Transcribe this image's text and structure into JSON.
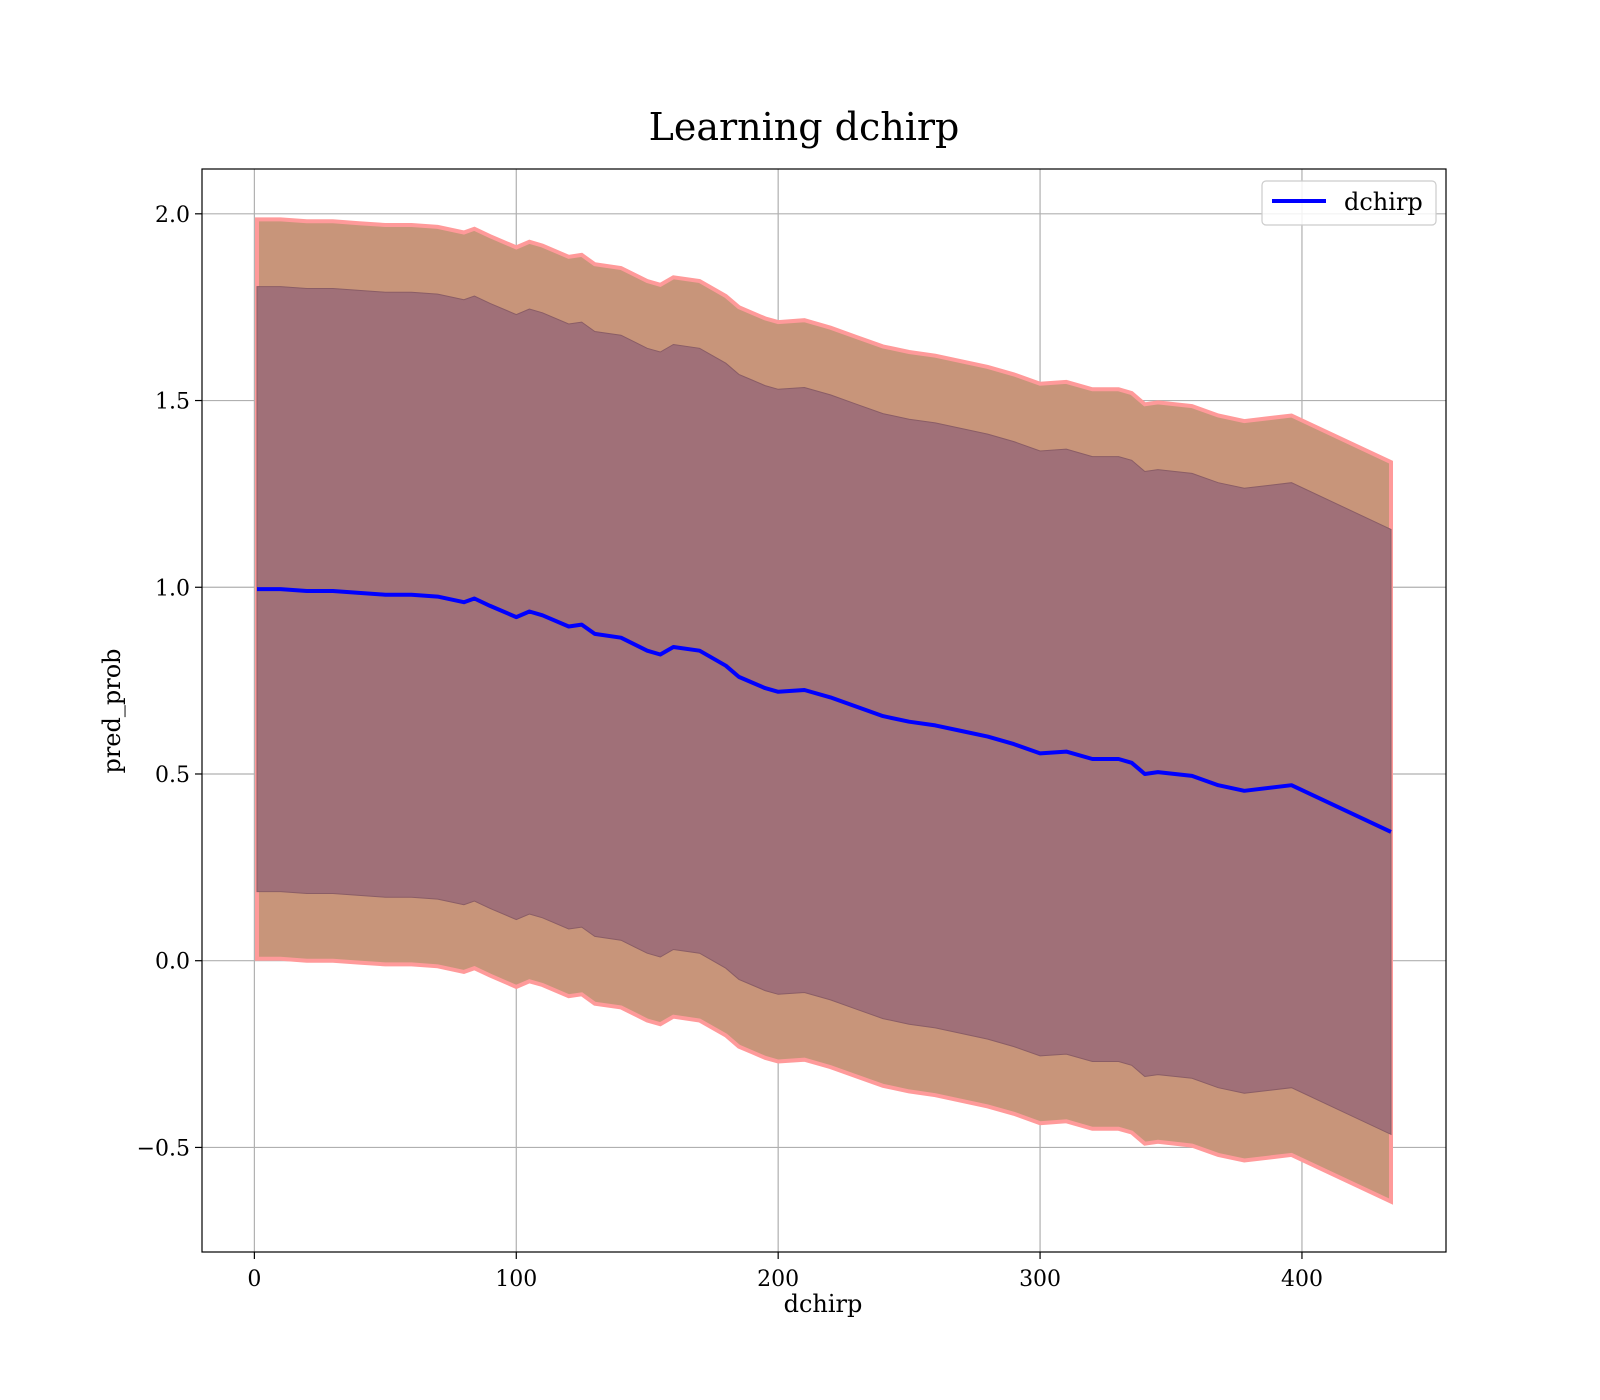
{
  "chart_data": {
    "type": "area",
    "title": "Learning dchirp",
    "xlabel": "dchirp",
    "ylabel": "pred_prob",
    "xlim": [
      -20,
      455
    ],
    "ylim": [
      -0.78,
      2.12
    ],
    "xticks": [
      0,
      100,
      200,
      300,
      400
    ],
    "yticks": [
      -0.5,
      0.0,
      0.5,
      1.0,
      1.5,
      2.0
    ],
    "xtick_labels": [
      "0",
      "100",
      "200",
      "300",
      "400"
    ],
    "ytick_labels": [
      "−0.5",
      "0.0",
      "0.5",
      "1.0",
      "1.5",
      "2.0"
    ],
    "grid": true,
    "legend": {
      "position": "upper-right",
      "entries": [
        "dchirp"
      ]
    },
    "colors": {
      "line": "#0000ff",
      "inner_band": "#a07078",
      "outer_band": "#c8957a",
      "band_edge": "#ff9a9a"
    },
    "series": [
      {
        "name": "dchirp",
        "x": [
          1,
          10,
          20,
          30,
          40,
          50,
          60,
          70,
          80,
          84,
          90,
          100,
          105,
          110,
          120,
          125,
          130,
          140,
          150,
          155,
          160,
          170,
          180,
          185,
          190,
          195,
          200,
          210,
          220,
          230,
          240,
          250,
          260,
          270,
          280,
          290,
          300,
          310,
          320,
          330,
          335,
          340,
          345,
          358,
          368,
          378,
          396,
          434
        ],
        "y": [
          0.995,
          0.995,
          0.99,
          0.99,
          0.985,
          0.98,
          0.98,
          0.975,
          0.96,
          0.97,
          0.95,
          0.92,
          0.935,
          0.925,
          0.895,
          0.9,
          0.875,
          0.865,
          0.83,
          0.82,
          0.84,
          0.83,
          0.79,
          0.76,
          0.745,
          0.73,
          0.72,
          0.725,
          0.705,
          0.68,
          0.655,
          0.64,
          0.63,
          0.615,
          0.6,
          0.58,
          0.555,
          0.56,
          0.54,
          0.54,
          0.53,
          0.5,
          0.505,
          0.495,
          0.47,
          0.455,
          0.47,
          0.345
        ]
      }
    ],
    "bands": [
      {
        "name": "inner",
        "half_width": [
          0.81,
          0.81
        ]
      },
      {
        "name": "outer",
        "half_width": [
          0.99,
          0.99
        ]
      }
    ]
  }
}
